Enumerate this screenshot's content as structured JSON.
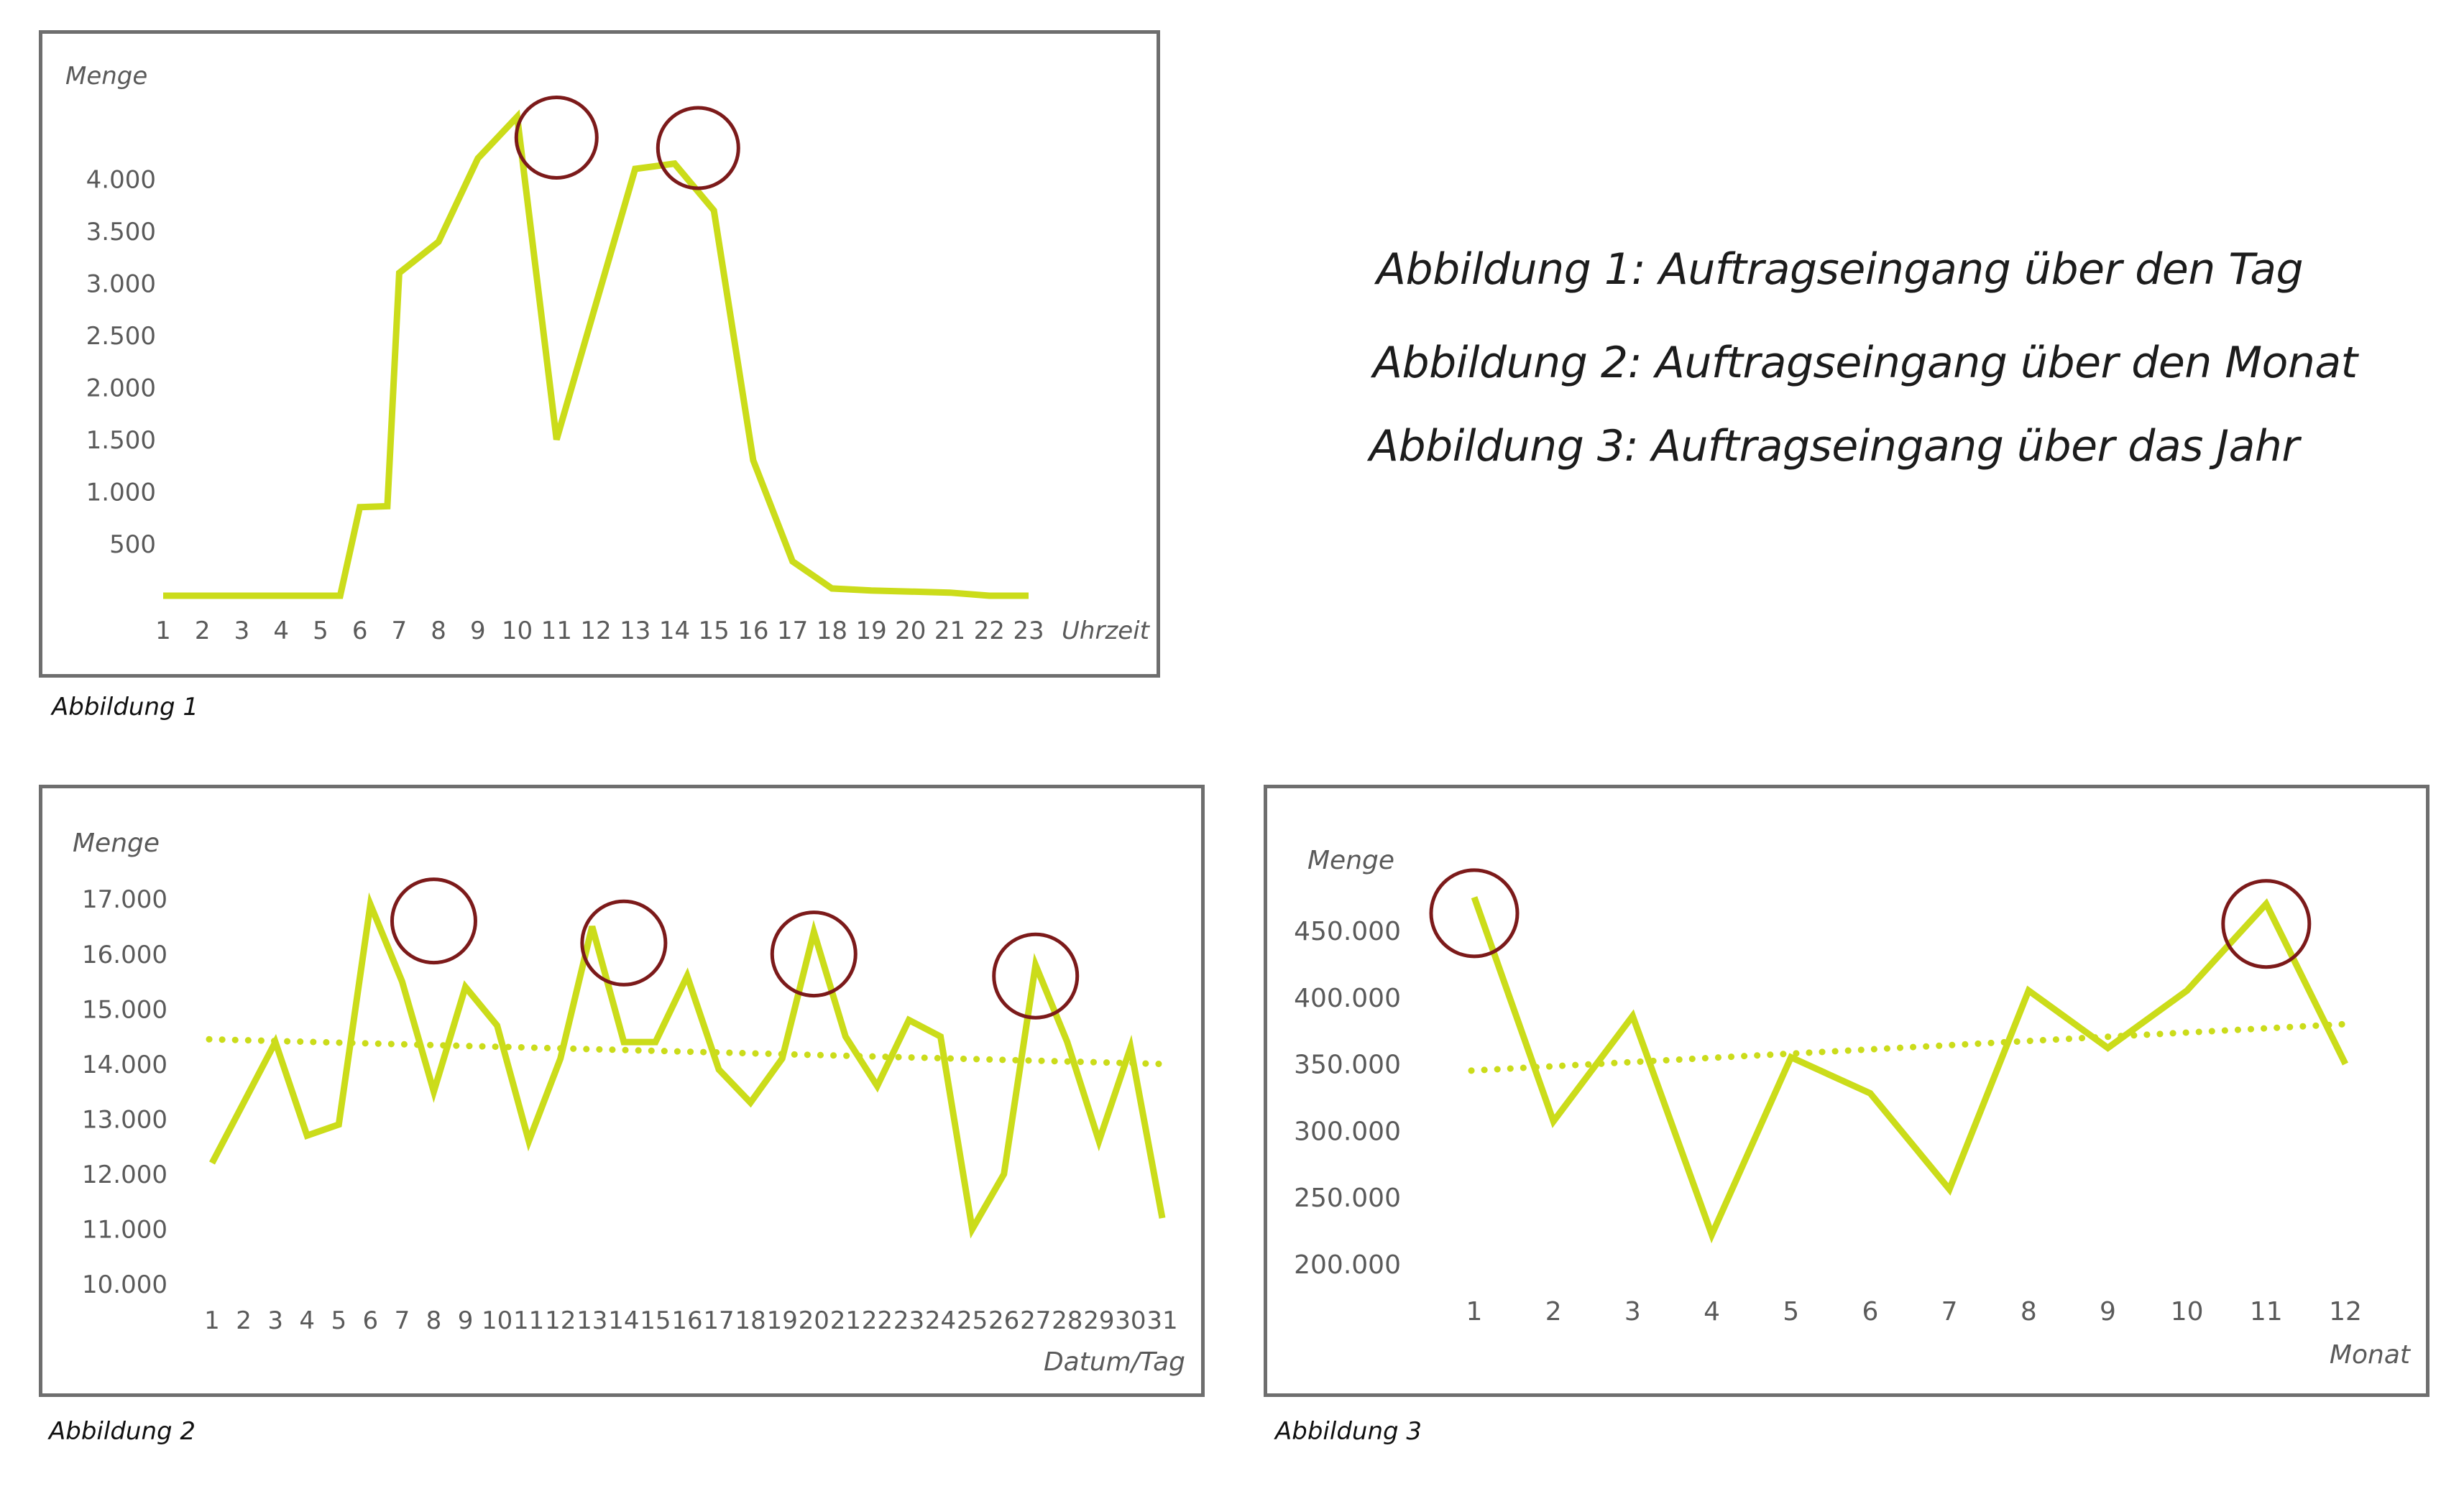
{
  "figures": {
    "fig1_caption": "Abbildung 1",
    "fig2_caption": "Abbildung 2",
    "fig3_caption": "Abbildung 3"
  },
  "legend": {
    "line1": "Abbildung 1: Auftragseingang über den Tag",
    "line2": "Abbildung 2: Auftragseingang über den Monat",
    "line3": "Abbildung 3: Auftragseingang über das Jahr"
  },
  "colors": {
    "series": "#cbdc1a",
    "trend": "#cbdc1a",
    "marker": "#7c1a1a",
    "frame": "#6e6e6e",
    "text": "#5a5a5a"
  },
  "chart_data": [
    {
      "type": "line",
      "ylabel": "Menge",
      "xlabel": "Uhrzeit",
      "ylim": [
        0,
        4500
      ],
      "y_ticks": [
        500,
        1000,
        1500,
        2000,
        2500,
        3000,
        3500,
        4000
      ],
      "y_tick_labels": [
        "500",
        "1.000",
        "1.500",
        "2.000",
        "2.500",
        "3.000",
        "3.500",
        "4.000"
      ],
      "x_tick_labels": [
        "1",
        "2",
        "3",
        "4",
        "5",
        "6",
        "7",
        "8",
        "9",
        "10",
        "11",
        "12",
        "13",
        "14",
        "15",
        "16",
        "17",
        "18",
        "19",
        "20",
        "21",
        "22",
        "23"
      ],
      "series": [
        {
          "x": [
            1,
            5.5,
            6,
            6.7,
            7,
            8,
            9,
            10,
            11,
            12,
            13,
            14,
            15,
            16,
            17,
            18,
            19,
            20,
            21,
            22,
            23
          ],
          "values": [
            0,
            0,
            850,
            860,
            3100,
            3400,
            4200,
            4600,
            1500,
            2800,
            4100,
            4150,
            3700,
            1300,
            330,
            70,
            50,
            40,
            30,
            0,
            0
          ]
        }
      ],
      "highlight_x": [
        11,
        14.6
      ],
      "highlight_y": [
        4400,
        4300
      ],
      "grid": false
    },
    {
      "type": "line",
      "ylabel": "Menge",
      "xlabel": "Datum/Tag",
      "ylim": [
        10000,
        17000
      ],
      "y_ticks": [
        10000,
        11000,
        12000,
        13000,
        14000,
        15000,
        16000,
        17000
      ],
      "y_tick_labels": [
        "10.000",
        "11.000",
        "12.000",
        "13.000",
        "14.000",
        "15.000",
        "16.000",
        "17.000"
      ],
      "x_tick_labels": [
        "1",
        "2",
        "3",
        "4",
        "5",
        "6",
        "7",
        "8",
        "9",
        "10",
        "11",
        "12",
        "13",
        "14",
        "15",
        "16",
        "17",
        "18",
        "19",
        "20",
        "21",
        "22",
        "23",
        "24",
        "25",
        "26",
        "27",
        "28",
        "29",
        "30",
        "31"
      ],
      "series": [
        {
          "x": [
            1,
            2,
            3,
            4,
            5,
            6,
            7,
            8,
            9,
            10,
            11,
            12,
            13,
            14,
            15,
            16,
            17,
            18,
            19,
            20,
            21,
            22,
            23,
            24,
            25,
            26,
            27,
            28,
            29,
            30,
            31
          ],
          "values": [
            12200,
            13300,
            14400,
            12700,
            12900,
            16900,
            15500,
            13500,
            15400,
            14700,
            12600,
            14100,
            16500,
            14400,
            14400,
            15600,
            13900,
            13300,
            14100,
            16400,
            14500,
            13600,
            14800,
            14500,
            11000,
            12000,
            15800,
            14400,
            12600,
            14300,
            11200
          ]
        }
      ],
      "trend": {
        "start": 14450,
        "end": 14000
      },
      "highlight_x": [
        8,
        14,
        20,
        27
      ],
      "highlight_y": [
        16600,
        16200,
        16000,
        15600
      ],
      "grid": false
    },
    {
      "type": "line",
      "ylabel": "Menge",
      "xlabel": "Monat",
      "ylim": [
        200000,
        450000
      ],
      "y_ticks": [
        200000,
        250000,
        300000,
        350000,
        400000,
        450000
      ],
      "y_tick_labels": [
        "200.000",
        "250.000",
        "300.000",
        "350.000",
        "400.000",
        "450.000"
      ],
      "x_tick_labels": [
        "1",
        "2",
        "3",
        "4",
        "5",
        "6",
        "7",
        "8",
        "9",
        "10",
        "11",
        "12"
      ],
      "series": [
        {
          "x": [
            1,
            2,
            3,
            4,
            5,
            6,
            7,
            8,
            9,
            10,
            11,
            12
          ],
          "values": [
            475000,
            307000,
            386000,
            222000,
            355000,
            328000,
            256000,
            405000,
            362000,
            405000,
            470000,
            350000
          ]
        }
      ],
      "trend": {
        "start": 345000,
        "end": 380000
      },
      "highlight_x": [
        1,
        11
      ],
      "highlight_y": [
        463000,
        455000
      ],
      "grid": false
    }
  ]
}
